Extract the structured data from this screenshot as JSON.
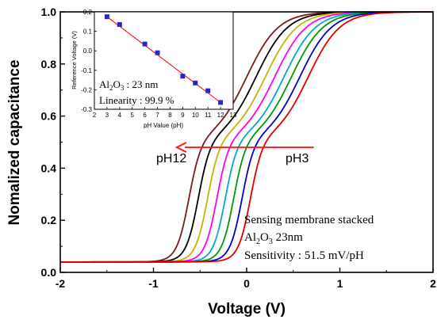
{
  "chart_data": [
    {
      "type": "line",
      "xlabel": "Voltage (V)",
      "ylabel": "Nomalized capacitance",
      "xlim": [
        -2,
        2
      ],
      "ylim": [
        0.0,
        1.0
      ],
      "xticks": [
        "-2",
        "-1",
        "0",
        "1",
        "2"
      ],
      "yticks": [
        "0.0",
        "0.2",
        "0.4",
        "0.6",
        "0.8",
        "1.0"
      ],
      "grid": false,
      "series": [
        {
          "color": "#7a1a1a",
          "low_edge_V": -0.62,
          "high_edge_V": 0.0
        },
        {
          "color": "#000000",
          "low_edge_V": -0.52,
          "high_edge_V": 0.1
        },
        {
          "color": "#c8b400",
          "low_edge_V": -0.42,
          "high_edge_V": 0.2
        },
        {
          "color": "#ff00ff",
          "low_edge_V": -0.32,
          "high_edge_V": 0.3
        },
        {
          "color": "#00aacc",
          "low_edge_V": -0.23,
          "high_edge_V": 0.4
        },
        {
          "color": "#009900",
          "low_edge_V": -0.14,
          "high_edge_V": 0.48
        },
        {
          "color": "#0000cc",
          "low_edge_V": -0.05,
          "high_edge_V": 0.57
        },
        {
          "color": "#e00000",
          "low_edge_V": 0.04,
          "high_edge_V": 0.66
        }
      ],
      "annotations": {
        "arrow_label_left": "pH12",
        "arrow_label_right": "pH3",
        "arrow_color": "#ff2020",
        "arrow_from_V": 0.72,
        "arrow_to_V": -0.75,
        "arrow_y": 0.48
      },
      "textbox": {
        "line1": "Sensing membrane stacked",
        "line2_base": "Al",
        "line2_sub1": "2",
        "line2_mid": "O",
        "line2_sub2": "3",
        "line2_rest": " 23nm",
        "line3": "Sensitivity : 51.5 mV/pH"
      }
    },
    {
      "type": "scatter",
      "inset": true,
      "xlabel": "pH Value (pH)",
      "ylabel": "Reference Voltage (V)",
      "xlim": [
        2,
        13
      ],
      "ylim": [
        -0.3,
        0.2
      ],
      "xticks": [
        "2",
        "3",
        "4",
        "5",
        "6",
        "7",
        "8",
        "9",
        "10",
        "11",
        "12",
        "13"
      ],
      "yticks": [
        "0.2",
        "0.1",
        "0.0",
        "-0.1",
        "-0.2",
        "-0.3"
      ],
      "x": [
        3,
        4,
        6,
        7,
        9,
        10,
        11,
        12
      ],
      "y": [
        0.175,
        0.135,
        0.035,
        -0.01,
        -0.13,
        -0.165,
        -0.205,
        -0.265
      ],
      "fit_line": {
        "x": [
          2.9,
          12.1
        ],
        "y": [
          0.18,
          -0.27
        ],
        "color": "#ff0000"
      },
      "marker_color": "#2828c8",
      "annot": {
        "line1_base": "Al",
        "line1_sub1": "2",
        "line1_mid": "O",
        "line1_sub2": "3",
        "line1_rest": " : 23 nm",
        "line2": "Linearity : 99.9 %"
      }
    }
  ]
}
